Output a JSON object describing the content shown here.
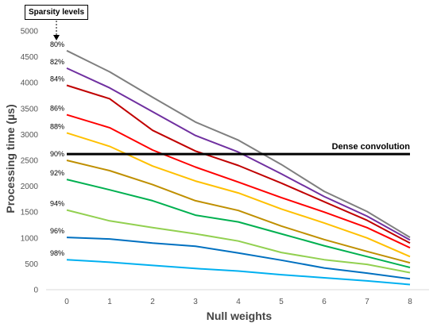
{
  "chart_data": {
    "type": "line",
    "xlabel": "Null weights",
    "ylabel": "Processing time (µs)",
    "x": [
      0,
      1,
      2,
      3,
      4,
      5,
      6,
      7,
      8
    ],
    "ylim": [
      0,
      5000
    ],
    "yticks": [
      0,
      500,
      1000,
      1500,
      2000,
      2500,
      3000,
      3500,
      4000,
      4500,
      5000
    ],
    "grid": false,
    "annotation_box": "Sparsity levels",
    "reference_line": {
      "label": "Dense convolution",
      "value": 2620,
      "color": "#000000"
    },
    "series": [
      {
        "name": "80%",
        "color": "#7f7f7f",
        "values": [
          4620,
          4210,
          3720,
          3240,
          2890,
          2420,
          1900,
          1510,
          1010
        ]
      },
      {
        "name": "82%",
        "color": "#7030a0",
        "values": [
          4280,
          3900,
          3440,
          2980,
          2660,
          2240,
          1800,
          1420,
          960
        ]
      },
      {
        "name": "84%",
        "color": "#c00000",
        "values": [
          3950,
          3690,
          3080,
          2680,
          2400,
          2060,
          1700,
          1340,
          900
        ]
      },
      {
        "name": "86%",
        "color": "#ff0000",
        "values": [
          3380,
          3130,
          2700,
          2370,
          2080,
          1780,
          1500,
          1200,
          810
        ]
      },
      {
        "name": "88%",
        "color": "#ffc000",
        "values": [
          3030,
          2770,
          2390,
          2100,
          1870,
          1560,
          1290,
          1000,
          640
        ]
      },
      {
        "name": "90%",
        "color": "#bf8f00",
        "values": [
          2500,
          2300,
          2030,
          1720,
          1530,
          1230,
          970,
          740,
          520
        ]
      },
      {
        "name": "92%",
        "color": "#00b050",
        "values": [
          2130,
          1930,
          1720,
          1440,
          1310,
          1080,
          850,
          640,
          430
        ]
      },
      {
        "name": "94%",
        "color": "#92d050",
        "values": [
          1540,
          1330,
          1200,
          1080,
          940,
          720,
          580,
          490,
          330
        ]
      },
      {
        "name": "96%",
        "color": "#0070c0",
        "values": [
          1010,
          980,
          900,
          840,
          710,
          570,
          420,
          320,
          210
        ]
      },
      {
        "name": "98%",
        "color": "#00b0f0",
        "values": [
          580,
          530,
          470,
          410,
          360,
          290,
          230,
          170,
          100
        ]
      }
    ]
  }
}
